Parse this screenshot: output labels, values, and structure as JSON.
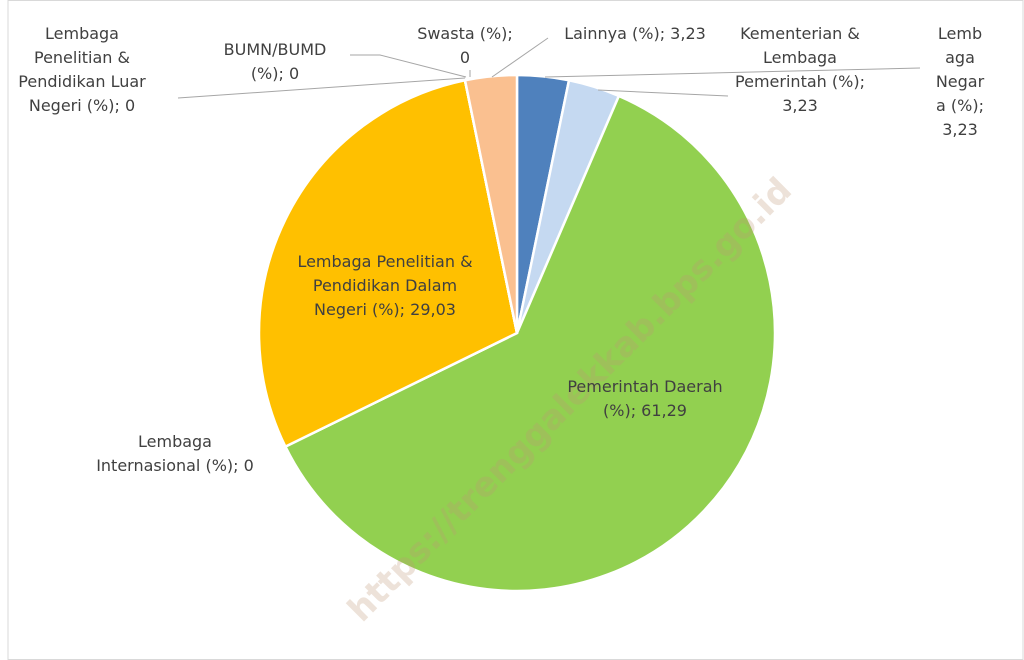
{
  "chart_data": {
    "type": "pie",
    "watermark": "https://trenggalekkab.bps.go.id",
    "label_separator": "; ",
    "categories": [
      "Lembaga Negara (%)",
      "Kementerian & Lembaga Pemerintah (%)",
      "Pemerintah Daerah (%)",
      "Lembaga Internasional (%)",
      "Lembaga Penelitian & Pendidikan Dalam Negeri (%)",
      "Lembaga Penelitian & Pendidikan Luar Negeri (%)",
      "BUMN/BUMD (%)",
      "Swasta (%)",
      "Lainnya (%)"
    ],
    "values": [
      3.23,
      3.23,
      61.29,
      0,
      29.03,
      0,
      0,
      0,
      3.23
    ],
    "value_labels": [
      "3,23",
      "3,23",
      "61,29",
      "0",
      "29,03",
      "0",
      "0",
      "0",
      "3,23"
    ],
    "colors": [
      "#4f81bd",
      "#c5d9f1",
      "#92d050",
      "#a5a5a5",
      "#ffc000",
      "#7f7f7f",
      "#5b9bd5",
      "#ed7d31",
      "#fac090"
    ]
  }
}
